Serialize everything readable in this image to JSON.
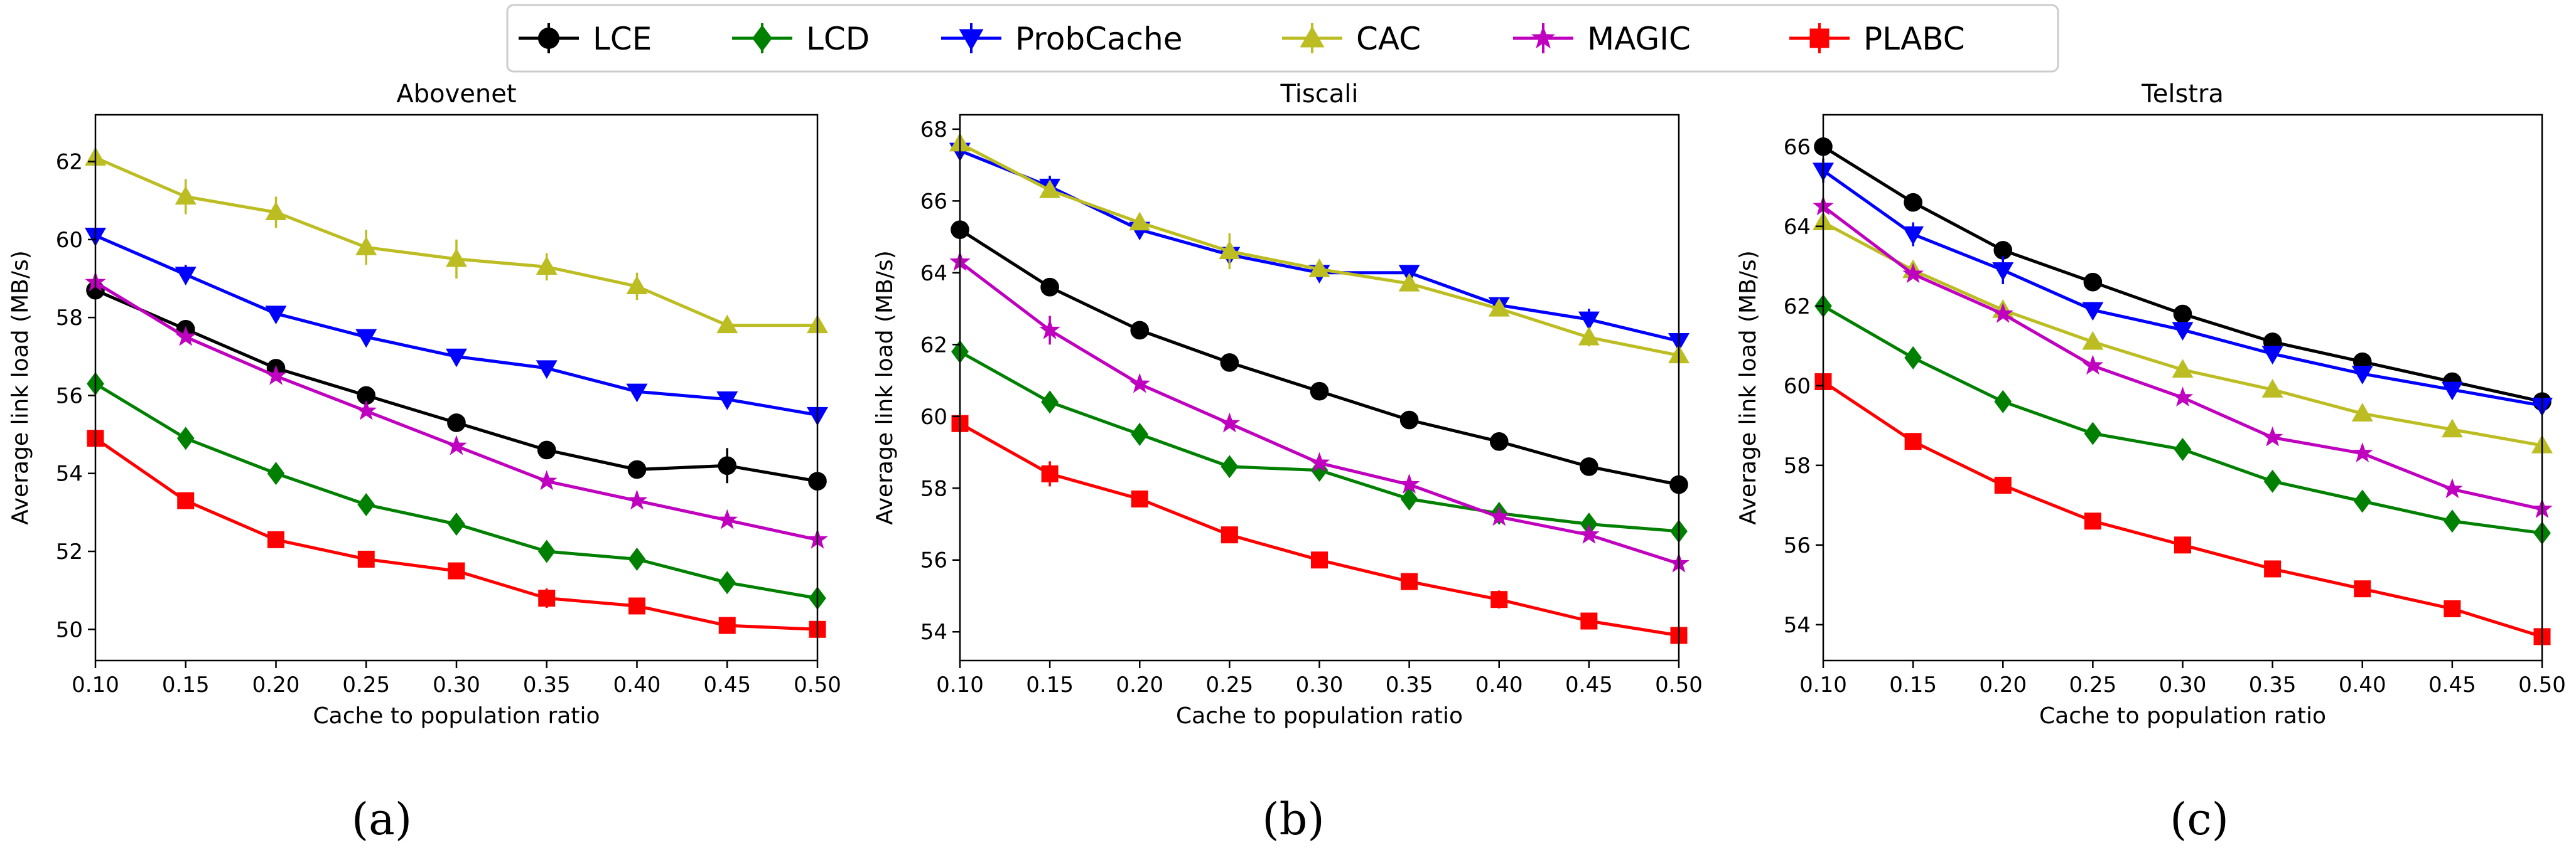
{
  "legend": {
    "entries": [
      {
        "name": "LCE",
        "color": "#000000",
        "marker": "circle"
      },
      {
        "name": "LCD",
        "color": "#008000",
        "marker": "diamond"
      },
      {
        "name": "ProbCache",
        "color": "#0000ff",
        "marker": "triangle-down"
      },
      {
        "name": "CAC",
        "color": "#bcbd22",
        "marker": "triangle-up"
      },
      {
        "name": "MAGIC",
        "color": "#bf00bf",
        "marker": "star"
      },
      {
        "name": "PLABC",
        "color": "#ff0000",
        "marker": "square"
      }
    ]
  },
  "chart_data": [
    {
      "type": "line",
      "title": "Abovenet",
      "caption": "(a)",
      "xlabel": "Cache to population ratio",
      "ylabel": "Average link load (MB/s)",
      "xlim": [
        0.1,
        0.5
      ],
      "ylim": [
        49.2,
        63.2
      ],
      "xticks": [
        "0.10",
        "0.15",
        "0.20",
        "0.25",
        "0.30",
        "0.35",
        "0.40",
        "0.45",
        "0.50"
      ],
      "yticks": [
        "50",
        "52",
        "54",
        "56",
        "58",
        "60",
        "62"
      ],
      "x": [
        0.1,
        0.15,
        0.2,
        0.25,
        0.3,
        0.35,
        0.4,
        0.45,
        0.5
      ],
      "series": [
        {
          "name": "LCE",
          "values": [
            58.7,
            57.7,
            56.7,
            56.0,
            55.3,
            54.6,
            54.1,
            54.2,
            53.8
          ],
          "err": [
            0.15,
            0.15,
            0.15,
            0.15,
            0.15,
            0.15,
            0.15,
            0.45,
            0.15
          ]
        },
        {
          "name": "LCD",
          "values": [
            56.3,
            54.9,
            54.0,
            53.2,
            52.7,
            52.0,
            51.8,
            51.2,
            50.8
          ],
          "err": [
            0.1,
            0.1,
            0.1,
            0.1,
            0.1,
            0.1,
            0.1,
            0.1,
            0.1
          ]
        },
        {
          "name": "ProbCache",
          "values": [
            60.1,
            59.1,
            58.1,
            57.5,
            57.0,
            56.7,
            56.1,
            55.9,
            55.5
          ],
          "err": [
            0.15,
            0.25,
            0.15,
            0.15,
            0.15,
            0.15,
            0.15,
            0.15,
            0.15
          ]
        },
        {
          "name": "CAC",
          "values": [
            62.1,
            61.1,
            60.7,
            59.8,
            59.5,
            59.3,
            58.8,
            57.8,
            57.8
          ],
          "err": [
            0.2,
            0.45,
            0.4,
            0.45,
            0.5,
            0.35,
            0.35,
            0.1,
            0.1
          ]
        },
        {
          "name": "MAGIC",
          "values": [
            58.9,
            57.5,
            56.5,
            55.6,
            54.7,
            53.8,
            53.3,
            52.8,
            52.3
          ],
          "err": [
            0.1,
            0.1,
            0.1,
            0.1,
            0.1,
            0.1,
            0.1,
            0.1,
            0.1
          ]
        },
        {
          "name": "PLABC",
          "values": [
            54.9,
            53.3,
            52.3,
            51.8,
            51.5,
            50.8,
            50.6,
            50.1,
            50.0
          ],
          "err": [
            0.1,
            0.1,
            0.1,
            0.15,
            0.1,
            0.25,
            0.1,
            0.1,
            0.1
          ]
        }
      ]
    },
    {
      "type": "line",
      "title": "Tiscali",
      "caption": "(b)",
      "xlabel": "Cache to population ratio",
      "ylabel": "Average link load (MB/s)",
      "xlim": [
        0.1,
        0.5
      ],
      "ylim": [
        53.2,
        68.4
      ],
      "xticks": [
        "0.10",
        "0.15",
        "0.20",
        "0.25",
        "0.30",
        "0.35",
        "0.40",
        "0.45",
        "0.50"
      ],
      "yticks": [
        "54",
        "56",
        "58",
        "60",
        "62",
        "64",
        "66",
        "68"
      ],
      "x": [
        0.1,
        0.15,
        0.2,
        0.25,
        0.3,
        0.35,
        0.4,
        0.45,
        0.5
      ],
      "series": [
        {
          "name": "LCE",
          "values": [
            65.2,
            63.6,
            62.4,
            61.5,
            60.7,
            59.9,
            59.3,
            58.6,
            58.1
          ],
          "err": [
            0.15,
            0.15,
            0.15,
            0.15,
            0.15,
            0.15,
            0.15,
            0.15,
            0.15
          ]
        },
        {
          "name": "LCD",
          "values": [
            61.8,
            60.4,
            59.5,
            58.6,
            58.5,
            57.7,
            57.3,
            57.0,
            56.8
          ],
          "err": [
            0.1,
            0.1,
            0.1,
            0.1,
            0.1,
            0.1,
            0.1,
            0.1,
            0.1
          ]
        },
        {
          "name": "ProbCache",
          "values": [
            67.4,
            66.4,
            65.2,
            64.5,
            64.0,
            64.0,
            63.1,
            62.7,
            62.1
          ],
          "err": [
            0.15,
            0.3,
            0.2,
            0.2,
            0.15,
            0.15,
            0.15,
            0.3,
            0.15
          ]
        },
        {
          "name": "CAC",
          "values": [
            67.6,
            66.3,
            65.4,
            64.6,
            64.1,
            63.7,
            63.0,
            62.2,
            61.7
          ],
          "err": [
            0.2,
            0.2,
            0.15,
            0.5,
            0.2,
            0.15,
            0.2,
            0.25,
            0.2
          ]
        },
        {
          "name": "MAGIC",
          "values": [
            64.3,
            62.4,
            60.9,
            59.8,
            58.7,
            58.1,
            57.2,
            56.7,
            55.9
          ],
          "err": [
            0.1,
            0.4,
            0.1,
            0.1,
            0.1,
            0.1,
            0.1,
            0.1,
            0.1
          ]
        },
        {
          "name": "PLABC",
          "values": [
            59.8,
            58.4,
            57.7,
            56.7,
            56.0,
            55.4,
            54.9,
            54.3,
            53.9
          ],
          "err": [
            0.1,
            0.35,
            0.1,
            0.1,
            0.1,
            0.1,
            0.25,
            0.1,
            0.1
          ]
        }
      ]
    },
    {
      "type": "line",
      "title": "Telstra",
      "caption": "(c)",
      "xlabel": "Cache to population ratio",
      "ylabel": "Average link load (MB/s)",
      "xlim": [
        0.1,
        0.5
      ],
      "ylim": [
        53.1,
        66.8
      ],
      "xticks": [
        "0.10",
        "0.15",
        "0.20",
        "0.25",
        "0.30",
        "0.35",
        "0.40",
        "0.45",
        "0.50"
      ],
      "yticks": [
        "54",
        "56",
        "58",
        "60",
        "62",
        "64",
        "66"
      ],
      "x": [
        0.1,
        0.15,
        0.2,
        0.25,
        0.3,
        0.35,
        0.4,
        0.45,
        0.5
      ],
      "series": [
        {
          "name": "LCE",
          "values": [
            66.0,
            64.6,
            63.4,
            62.6,
            61.8,
            61.1,
            60.6,
            60.1,
            59.6
          ],
          "err": [
            0.15,
            0.15,
            0.15,
            0.15,
            0.15,
            0.15,
            0.15,
            0.15,
            0.15
          ]
        },
        {
          "name": "LCD",
          "values": [
            62.0,
            60.7,
            59.6,
            58.8,
            58.4,
            57.6,
            57.1,
            56.6,
            56.3
          ],
          "err": [
            0.1,
            0.1,
            0.1,
            0.1,
            0.1,
            0.1,
            0.1,
            0.1,
            0.1
          ]
        },
        {
          "name": "ProbCache",
          "values": [
            65.4,
            63.8,
            62.9,
            61.9,
            61.4,
            60.8,
            60.3,
            59.9,
            59.5
          ],
          "err": [
            0.3,
            0.3,
            0.35,
            0.2,
            0.2,
            0.2,
            0.15,
            0.15,
            0.15
          ]
        },
        {
          "name": "CAC",
          "values": [
            64.1,
            62.9,
            61.9,
            61.1,
            60.4,
            59.9,
            59.3,
            58.9,
            58.5
          ],
          "err": [
            0.15,
            0.15,
            0.15,
            0.15,
            0.15,
            0.15,
            0.15,
            0.15,
            0.15
          ]
        },
        {
          "name": "MAGIC",
          "values": [
            64.5,
            62.8,
            61.8,
            60.5,
            59.7,
            58.7,
            58.3,
            57.4,
            56.9
          ],
          "err": [
            0.1,
            0.1,
            0.1,
            0.1,
            0.1,
            0.1,
            0.1,
            0.1,
            0.1
          ]
        },
        {
          "name": "PLABC",
          "values": [
            60.1,
            58.6,
            57.5,
            56.6,
            56.0,
            55.4,
            54.9,
            54.4,
            53.7
          ],
          "err": [
            0.1,
            0.1,
            0.1,
            0.1,
            0.1,
            0.1,
            0.1,
            0.1,
            0.1
          ]
        }
      ]
    }
  ]
}
